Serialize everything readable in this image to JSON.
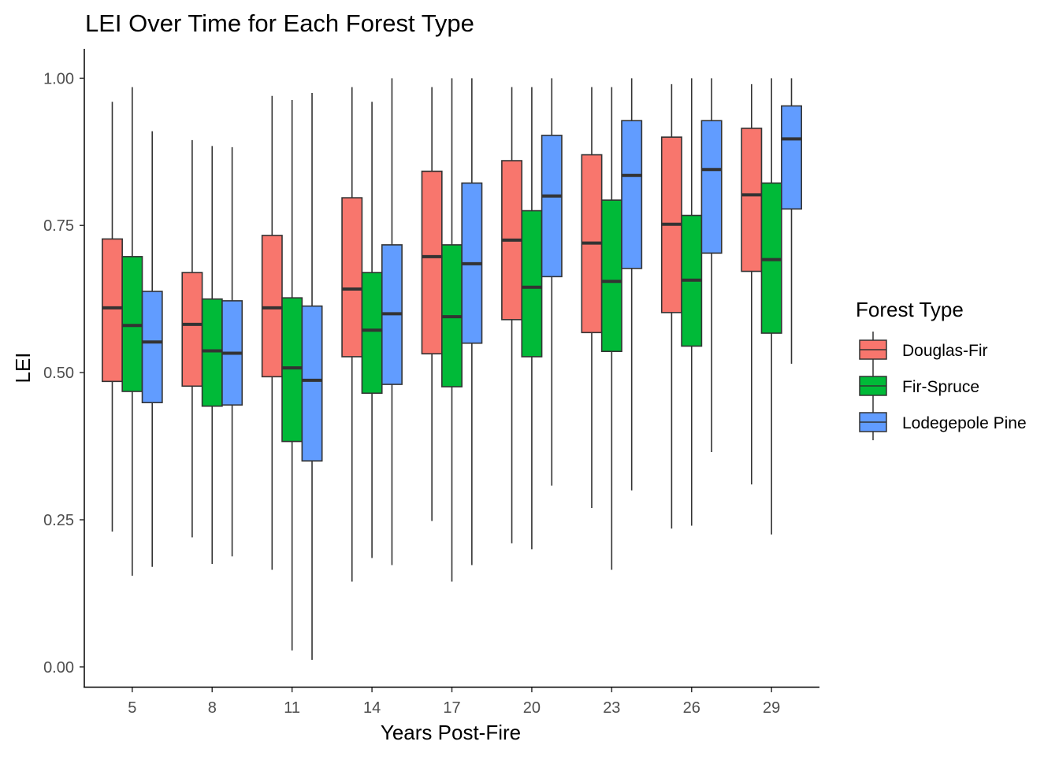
{
  "chart_data": {
    "type": "boxplot",
    "title": "LEI Over Time for Each Forest Type",
    "xlabel": "Years Post-Fire",
    "ylabel": "LEI",
    "categories": [
      "5",
      "8",
      "11",
      "14",
      "17",
      "20",
      "23",
      "26",
      "29"
    ],
    "y_ticks": [
      "0.00",
      "0.25",
      "0.50",
      "0.75",
      "1.00"
    ],
    "ylim": [
      -0.035,
      1.05
    ],
    "grid": false,
    "legend": {
      "title": "Forest Type",
      "position": "right"
    },
    "series": [
      {
        "name": "Douglas-Fir",
        "color": "#F8766D",
        "boxes": [
          {
            "min": 0.23,
            "q1": 0.485,
            "median": 0.61,
            "q3": 0.727,
            "max": 0.96
          },
          {
            "min": 0.22,
            "q1": 0.477,
            "median": 0.582,
            "q3": 0.67,
            "max": 0.895
          },
          {
            "min": 0.165,
            "q1": 0.493,
            "median": 0.61,
            "q3": 0.733,
            "max": 0.97
          },
          {
            "min": 0.145,
            "q1": 0.527,
            "median": 0.642,
            "q3": 0.797,
            "max": 0.985
          },
          {
            "min": 0.248,
            "q1": 0.532,
            "median": 0.697,
            "q3": 0.842,
            "max": 0.985
          },
          {
            "min": 0.21,
            "q1": 0.59,
            "median": 0.725,
            "q3": 0.86,
            "max": 0.985
          },
          {
            "min": 0.27,
            "q1": 0.568,
            "median": 0.72,
            "q3": 0.87,
            "max": 0.985
          },
          {
            "min": 0.235,
            "q1": 0.602,
            "median": 0.752,
            "q3": 0.9,
            "max": 0.99
          },
          {
            "min": 0.31,
            "q1": 0.672,
            "median": 0.802,
            "q3": 0.915,
            "max": 0.99
          }
        ]
      },
      {
        "name": "Fir-Spruce",
        "color": "#00BA38",
        "boxes": [
          {
            "min": 0.155,
            "q1": 0.468,
            "median": 0.58,
            "q3": 0.697,
            "max": 0.985
          },
          {
            "min": 0.175,
            "q1": 0.443,
            "median": 0.537,
            "q3": 0.625,
            "max": 0.885
          },
          {
            "min": 0.028,
            "q1": 0.383,
            "median": 0.508,
            "q3": 0.627,
            "max": 0.963
          },
          {
            "min": 0.185,
            "q1": 0.465,
            "median": 0.572,
            "q3": 0.67,
            "max": 0.96
          },
          {
            "min": 0.145,
            "q1": 0.476,
            "median": 0.595,
            "q3": 0.717,
            "max": 1.0
          },
          {
            "min": 0.2,
            "q1": 0.527,
            "median": 0.645,
            "q3": 0.775,
            "max": 0.985
          },
          {
            "min": 0.165,
            "q1": 0.536,
            "median": 0.655,
            "q3": 0.793,
            "max": 0.985
          },
          {
            "min": 0.24,
            "q1": 0.545,
            "median": 0.657,
            "q3": 0.767,
            "max": 1.0
          },
          {
            "min": 0.225,
            "q1": 0.567,
            "median": 0.692,
            "q3": 0.822,
            "max": 1.0
          }
        ]
      },
      {
        "name": "Lodegepole Pine",
        "color": "#619CFF",
        "boxes": [
          {
            "min": 0.17,
            "q1": 0.449,
            "median": 0.552,
            "q3": 0.638,
            "max": 0.91
          },
          {
            "min": 0.188,
            "q1": 0.445,
            "median": 0.533,
            "q3": 0.622,
            "max": 0.883
          },
          {
            "min": 0.012,
            "q1": 0.35,
            "median": 0.487,
            "q3": 0.613,
            "max": 0.975
          },
          {
            "min": 0.173,
            "q1": 0.48,
            "median": 0.6,
            "q3": 0.717,
            "max": 1.0
          },
          {
            "min": 0.173,
            "q1": 0.55,
            "median": 0.685,
            "q3": 0.822,
            "max": 1.0
          },
          {
            "min": 0.308,
            "q1": 0.663,
            "median": 0.8,
            "q3": 0.903,
            "max": 1.0
          },
          {
            "min": 0.3,
            "q1": 0.677,
            "median": 0.835,
            "q3": 0.928,
            "max": 1.0
          },
          {
            "min": 0.365,
            "q1": 0.703,
            "median": 0.845,
            "q3": 0.928,
            "max": 1.0
          },
          {
            "min": 0.515,
            "q1": 0.778,
            "median": 0.897,
            "q3": 0.953,
            "max": 1.0
          }
        ]
      }
    ]
  }
}
